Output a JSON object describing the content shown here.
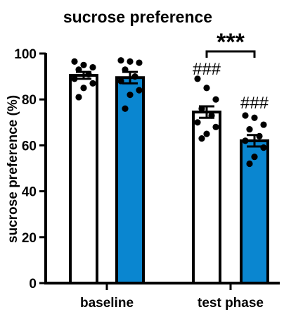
{
  "chart_data": {
    "type": "bar",
    "title": "sucrose preference",
    "xlabel": "",
    "ylabel": "sucrose preference (%)",
    "ylim": [
      0,
      100
    ],
    "yticks": [
      0,
      20,
      40,
      60,
      80,
      100
    ],
    "groups": [
      "baseline",
      "test phase"
    ],
    "colors": {
      "white_bar": "#ffffff",
      "blue_bar": "#0a86d0",
      "stroke": "#000000"
    },
    "series": [
      {
        "fill": "#ffffff",
        "values": [
          90.5,
          74.5
        ],
        "errors": [
          1.5,
          2.5
        ],
        "points": [
          [
            96.5,
            95,
            94,
            93,
            91,
            89,
            87,
            85,
            81
          ],
          [
            89,
            85,
            80,
            76,
            73,
            70,
            68,
            65,
            63
          ]
        ]
      },
      {
        "fill": "#0a86d0",
        "values": [
          89.5,
          62
        ],
        "errors": [
          2.5,
          2.5
        ],
        "points": [
          [
            97,
            96.5,
            96,
            93,
            90,
            88,
            84,
            82,
            76
          ],
          [
            73,
            72,
            69,
            67,
            64,
            62,
            59,
            55,
            52
          ]
        ]
      }
    ],
    "annotations": {
      "hash_label": "###",
      "bracket_label": "***"
    }
  }
}
